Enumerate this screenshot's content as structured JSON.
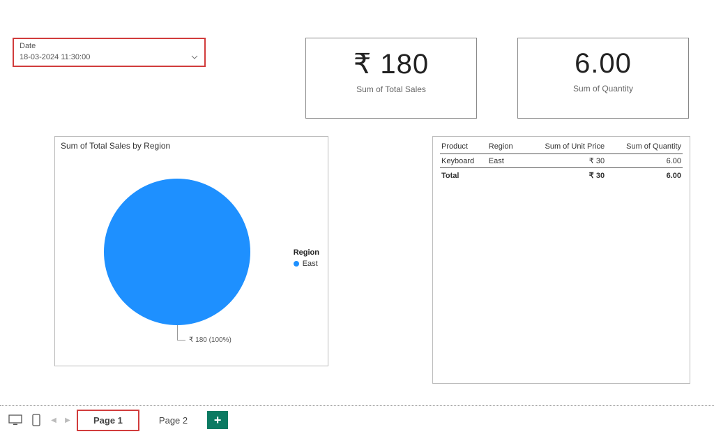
{
  "colors": {
    "highlight_border": "#d13c3c",
    "card_border": "#888888",
    "pie_fill": "#1e90ff",
    "add_page_bg": "#0b7a62",
    "text_primary": "#333333",
    "text_muted": "#666666"
  },
  "slicer": {
    "label": "Date",
    "value": "18-03-2024 11:30:00"
  },
  "kpi_sales": {
    "value": "₹ 180",
    "caption": "Sum of Total Sales"
  },
  "kpi_qty": {
    "value": "6.00",
    "caption": "Sum of Quantity"
  },
  "pie": {
    "type": "pie",
    "title": "Sum of Total Sales by Region",
    "legend_header": "Region",
    "diameter": 210,
    "fill": "#1e90ff",
    "slices": [
      {
        "label": "East",
        "value": 180,
        "pct": "100%",
        "color": "#1e90ff"
      }
    ],
    "data_label": "₹ 180 (100%)"
  },
  "table": {
    "columns": [
      "Product",
      "Region",
      "Sum of Unit Price",
      "Sum of Quantity"
    ],
    "rows": [
      {
        "product": "Keyboard",
        "region": "East",
        "unit_price": "₹ 30",
        "quantity": "6.00"
      }
    ],
    "total": {
      "label": "Total",
      "unit_price": "₹ 30",
      "quantity": "6.00"
    }
  },
  "tabs": {
    "pages": [
      "Page 1",
      "Page 2"
    ],
    "active": "Page 1",
    "add_label": "+"
  }
}
